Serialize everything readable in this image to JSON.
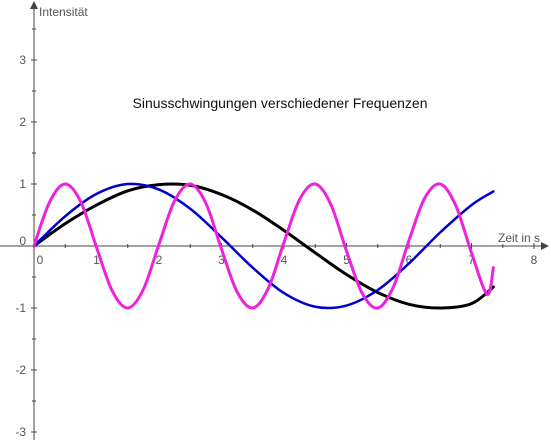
{
  "chart_data": {
    "type": "line",
    "title": "Sinusschwingungen verschiedener Frequenzen",
    "xlabel": "Zeit in s",
    "ylabel": "Intensität",
    "xlim": [
      -0.05,
      8.2
    ],
    "ylim": [
      -3,
      3.7
    ],
    "x_ticks": [
      0,
      1,
      2,
      3,
      4,
      5,
      6,
      7,
      8
    ],
    "y_ticks": [
      -3,
      -2,
      -1,
      0,
      1,
      2,
      3
    ],
    "x_tick_labels": [
      "0",
      "1",
      "2",
      "3",
      "4",
      "5",
      "6",
      "7",
      "8"
    ],
    "y_tick_labels": [
      "-3",
      "-2",
      "-1",
      "0",
      "1",
      "2",
      "3"
    ],
    "grid": false,
    "legend": "none",
    "series": [
      {
        "color": "#000000",
        "line_width": 3,
        "x": [
          0,
          0.5,
          1,
          1.5,
          2,
          2.5,
          3,
          3.5,
          4,
          4.5,
          5,
          5.5,
          6,
          6.5,
          7,
          7.35
        ],
        "y": [
          0,
          0.36,
          0.66,
          0.89,
          0.99,
          0.98,
          0.83,
          0.58,
          0.25,
          -0.11,
          -0.46,
          -0.75,
          -0.94,
          -1.0,
          -0.93,
          -0.66
        ]
      },
      {
        "color": "#0000cc",
        "line_width": 2.5,
        "x": [
          0,
          0.5,
          1,
          1.5,
          2,
          2.5,
          3,
          3.5,
          4,
          4.5,
          5,
          5.5,
          6,
          6.5,
          7,
          7.35
        ],
        "y": [
          0,
          0.48,
          0.84,
          1.0,
          0.91,
          0.6,
          0.14,
          -0.35,
          -0.76,
          -0.98,
          -0.96,
          -0.71,
          -0.28,
          0.22,
          0.66,
          0.88
        ]
      },
      {
        "color": "#ee22dd",
        "line_width": 3,
        "x": [
          0,
          0.25,
          0.5,
          0.75,
          1,
          1.25,
          1.5,
          1.75,
          2,
          2.25,
          2.5,
          2.75,
          3,
          3.25,
          3.5,
          3.75,
          4,
          4.25,
          4.5,
          4.75,
          5,
          5.25,
          5.5,
          5.75,
          6,
          6.25,
          6.5,
          6.75,
          7,
          7.25,
          7.35
        ],
        "y": [
          0,
          0.71,
          1.0,
          0.71,
          -0.02,
          -0.72,
          -1.0,
          -0.7,
          0.03,
          0.73,
          1.0,
          0.69,
          -0.05,
          -0.74,
          -1.0,
          -0.68,
          0.06,
          0.75,
          1.0,
          0.67,
          -0.08,
          -0.76,
          -1.0,
          -0.66,
          0.09,
          0.77,
          1.0,
          0.65,
          -0.11,
          -0.78,
          -0.35
        ]
      }
    ]
  }
}
